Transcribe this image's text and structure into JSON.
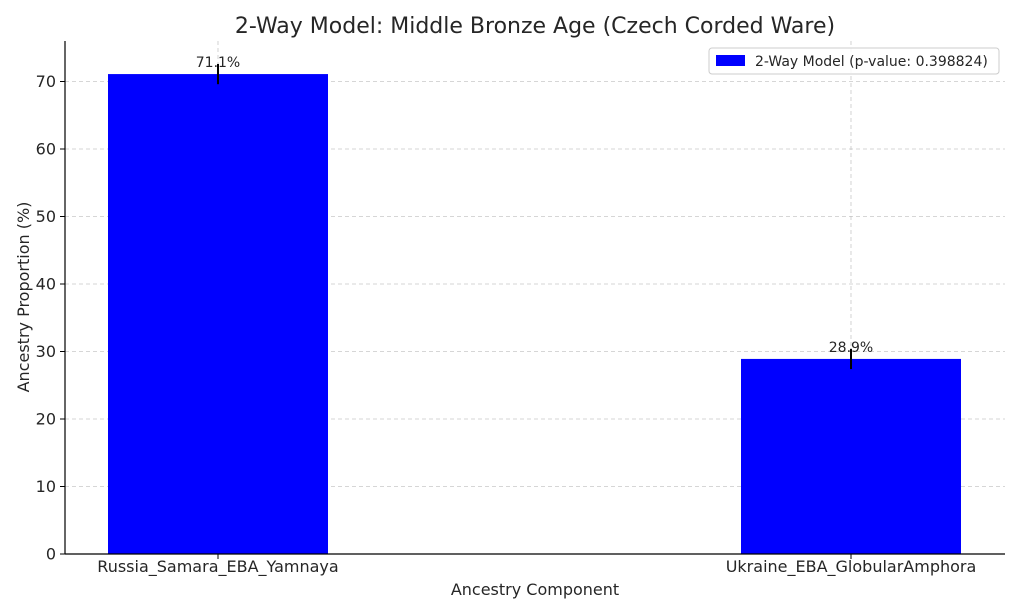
{
  "chart_data": {
    "type": "bar",
    "title": "2-Way Model: Middle Bronze Age (Czech Corded Ware)",
    "xlabel": "Ancestry Component",
    "ylabel": "Ancestry Proportion (%)",
    "categories": [
      "Russia_Samara_EBA_Yamnaya",
      "Ukraine_EBA_GlobularAmphora"
    ],
    "series": [
      {
        "name": "2-Way Model (p-value: 0.398824)",
        "values": [
          71.1,
          28.9
        ],
        "errors": [
          1.5,
          1.5
        ],
        "data_labels": [
          "71.1%",
          "28.9%"
        ],
        "color": "#0000ff"
      }
    ],
    "ylim": [
      0,
      76
    ],
    "yticks": [
      0,
      10,
      20,
      30,
      40,
      50,
      60,
      70
    ],
    "grid": true,
    "legend_position": "top-right"
  }
}
